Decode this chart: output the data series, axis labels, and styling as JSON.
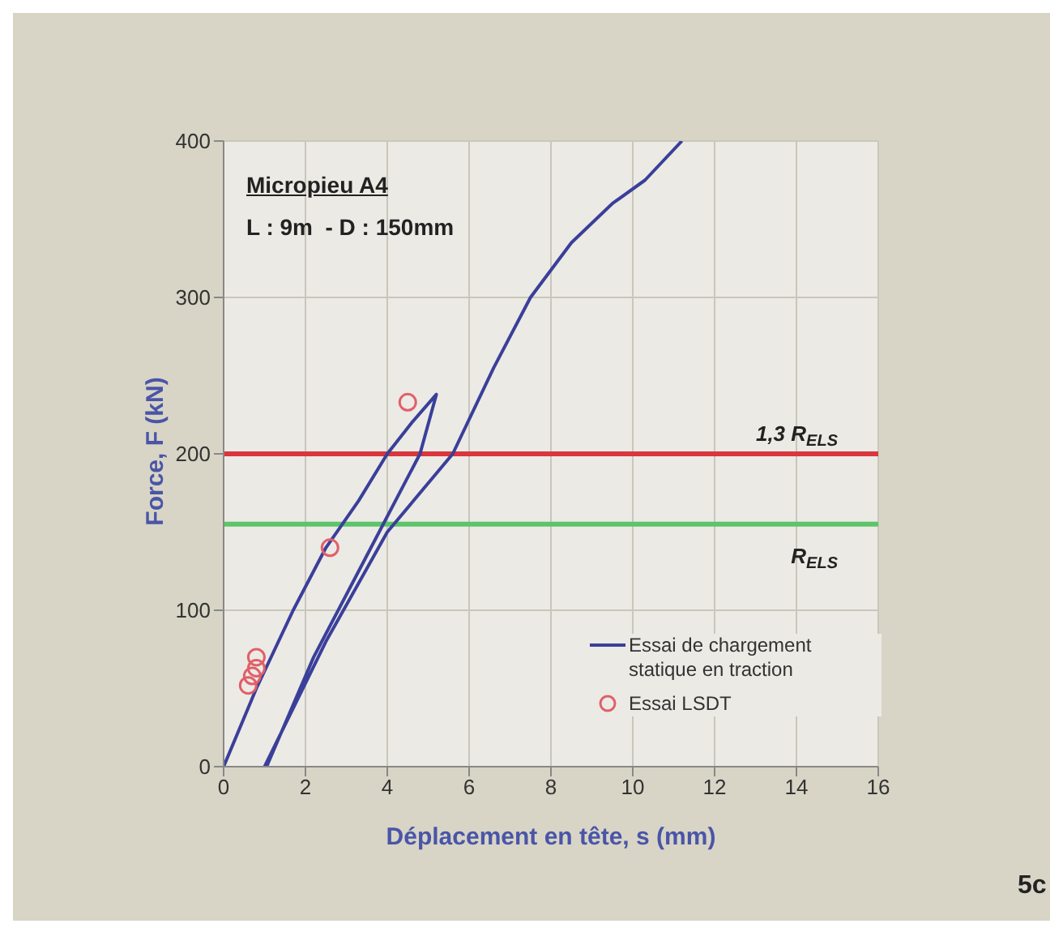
{
  "chart_data": {
    "type": "line",
    "xlabel": "Déplacement en tête,  s (mm)",
    "ylabel": "Force, F (kN)",
    "xlim": [
      0,
      16
    ],
    "xticks": [
      0,
      2,
      4,
      6,
      8,
      10,
      12,
      14,
      16
    ],
    "ylim": [
      0,
      400
    ],
    "yticks": [
      0,
      100,
      200,
      300,
      400
    ],
    "grid": true,
    "legend": "bottom right",
    "series": [
      {
        "name": "Essai de chargement statique en traction",
        "color": "#3a3f9a",
        "marker": "none",
        "line_style": "solid",
        "x": [
          0,
          0.8,
          1.7,
          2.5,
          3.3,
          4.0,
          4.6,
          5.2,
          4.8,
          3.5,
          2.2,
          1.05,
          1.0,
          2.5,
          4.0,
          5.6,
          6.6,
          7.5,
          8.5,
          9.5,
          10.3,
          11.2
        ],
        "values": [
          0,
          50,
          100,
          140,
          170,
          200,
          220,
          238,
          200,
          135,
          70,
          0,
          0,
          80,
          150,
          200,
          255,
          300,
          335,
          360,
          375,
          400
        ]
      },
      {
        "name": "Essai LSDT",
        "type": "scatter",
        "color": "#e0606a",
        "marker": "circle",
        "x": [
          0.6,
          0.7,
          0.8,
          0.8,
          2.6,
          4.5
        ],
        "values": [
          52,
          58,
          63,
          70,
          140,
          233
        ]
      }
    ],
    "ref_lines": [
      {
        "axis": "y",
        "value": 200,
        "label": "1,3 R$_{ELS}$",
        "color": "#d9363e"
      },
      {
        "axis": "y",
        "value": 155,
        "label": "R$_{ELS}$",
        "color": "#5cc46a"
      }
    ],
    "annotations": [
      "Micropieu A4",
      "L : 9m  - D : 150mm",
      "5c"
    ]
  }
}
